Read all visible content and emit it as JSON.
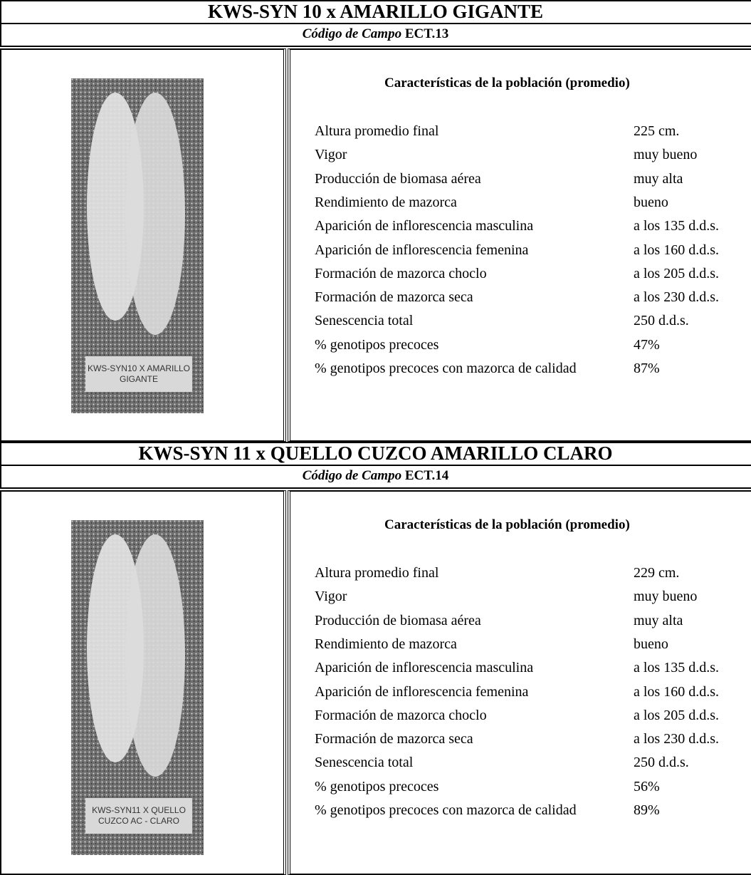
{
  "sections": [
    {
      "title": "KWS-SYN 10 x AMARILLO GIGANTE",
      "code_label": "Código de Campo",
      "code": "ECT.13",
      "photo_label": [
        "KWS-SYN10 X AMARILLO",
        "GIGANTE"
      ],
      "table_title": "Características de la población (promedio)",
      "rows": [
        [
          "Altura promedio final",
          "225 cm."
        ],
        [
          "Vigor",
          "muy bueno"
        ],
        [
          "Producción de biomasa aérea",
          "muy alta"
        ],
        [
          "Rendimiento de mazorca",
          "bueno"
        ],
        [
          "Aparición de inflorescencia masculina",
          "a los 135 d.d.s."
        ],
        [
          "Aparición de inflorescencia femenina",
          "a los 160 d.d.s."
        ],
        [
          "Formación de mazorca choclo",
          "a los 205 d.d.s."
        ],
        [
          "Formación de mazorca seca",
          "a los 230 d.d.s."
        ],
        [
          "Senescencia total",
          "250 d.d.s."
        ],
        [
          "% genotipos precoces",
          "47%"
        ],
        [
          "% genotipos precoces con mazorca de calidad",
          "87%"
        ]
      ]
    },
    {
      "title": "KWS-SYN 11 x QUELLO CUZCO AMARILLO CLARO",
      "code_label": "Código de Campo",
      "code": "ECT.14",
      "photo_label": [
        "KWS-SYN11 X QUELLO",
        "CUZCO AC - CLARO"
      ],
      "table_title": "Características de la población (promedio)",
      "rows": [
        [
          "Altura promedio final",
          "229 cm."
        ],
        [
          "Vigor",
          "muy bueno"
        ],
        [
          "Producción de biomasa aérea",
          "muy alta"
        ],
        [
          "Rendimiento de mazorca",
          "bueno"
        ],
        [
          "Aparición de inflorescencia masculina",
          "a los 135 d.d.s."
        ],
        [
          "Aparición de inflorescencia femenina",
          "a los 160 d.d.s."
        ],
        [
          "Formación de mazorca choclo",
          "a los 205 d.d.s."
        ],
        [
          "Formación de mazorca seca",
          "a los 230 d.d.s."
        ],
        [
          "Senescencia total",
          "250 d.d.s."
        ],
        [
          "% genotipos precoces",
          "56%"
        ],
        [
          "% genotipos precoces con mazorca de calidad",
          "89%"
        ]
      ]
    }
  ]
}
